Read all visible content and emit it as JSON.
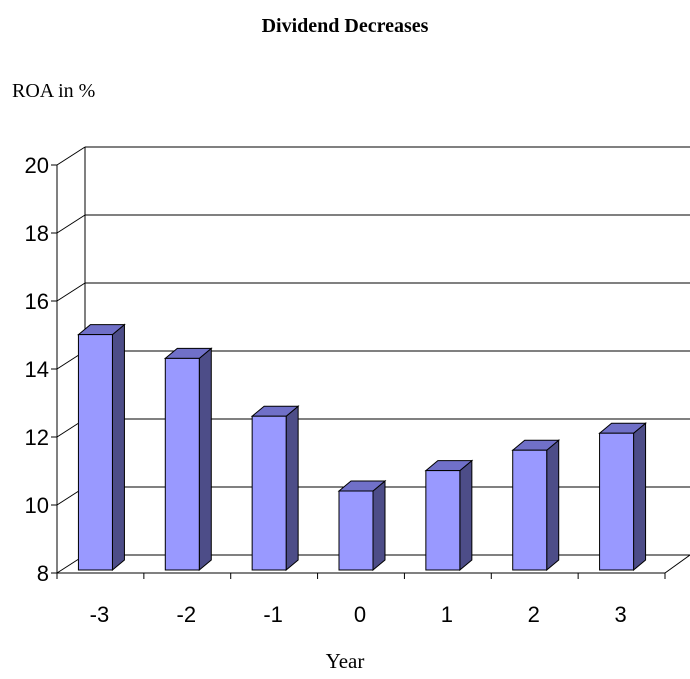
{
  "chart_data": {
    "type": "bar",
    "title": "Dividend Decreases",
    "ylabel": "ROA in %",
    "xlabel": "Year",
    "categories": [
      "-3",
      "-2",
      "-1",
      "0",
      "1",
      "2",
      "3"
    ],
    "values": [
      15.1,
      14.4,
      12.7,
      10.5,
      11.1,
      11.7,
      12.2
    ],
    "ylim": [
      8,
      20
    ],
    "yticks": [
      "8",
      "10",
      "12",
      "14",
      "16",
      "18",
      "20"
    ],
    "grid": true,
    "style": "3d-column",
    "colors": {
      "bar_front": "#9999ff",
      "bar_side": "#4d4d88",
      "bar_top": "#7070c8",
      "edge": "#000000"
    }
  }
}
